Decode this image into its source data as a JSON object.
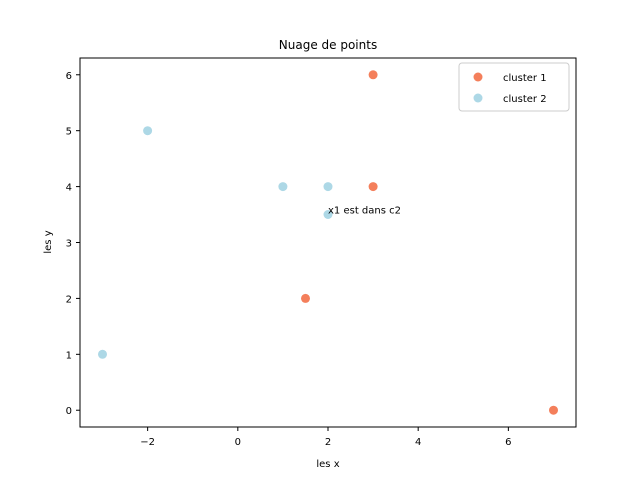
{
  "chart_data": {
    "type": "scatter",
    "title": "Nuage de points",
    "xlabel": "les x",
    "ylabel": "les y",
    "xlim": [
      -3.5,
      7.5
    ],
    "ylim": [
      -0.3,
      6.3
    ],
    "xticks": [
      -2,
      0,
      2,
      4,
      6
    ],
    "yticks": [
      0,
      1,
      2,
      3,
      4,
      5,
      6
    ],
    "xtick_labels": [
      "−2",
      "0",
      "2",
      "4",
      "6"
    ],
    "ytick_labels": [
      "0",
      "1",
      "2",
      "3",
      "4",
      "5",
      "6"
    ],
    "grid": false,
    "legend_position": "top-right",
    "series": [
      {
        "name": "cluster 1",
        "color": "#f47f5b",
        "points": [
          [
            3,
            6
          ],
          [
            3,
            4
          ],
          [
            1.5,
            2
          ],
          [
            7,
            0
          ]
        ]
      },
      {
        "name": "cluster 2",
        "color": "#add8e6",
        "points": [
          [
            -2,
            5
          ],
          [
            1,
            4
          ],
          [
            2,
            4
          ],
          [
            2,
            3.5
          ],
          [
            -3,
            1
          ]
        ]
      }
    ],
    "annotations": [
      {
        "text": "x1 est dans  c2",
        "x": 2,
        "y": 3.5
      }
    ]
  }
}
